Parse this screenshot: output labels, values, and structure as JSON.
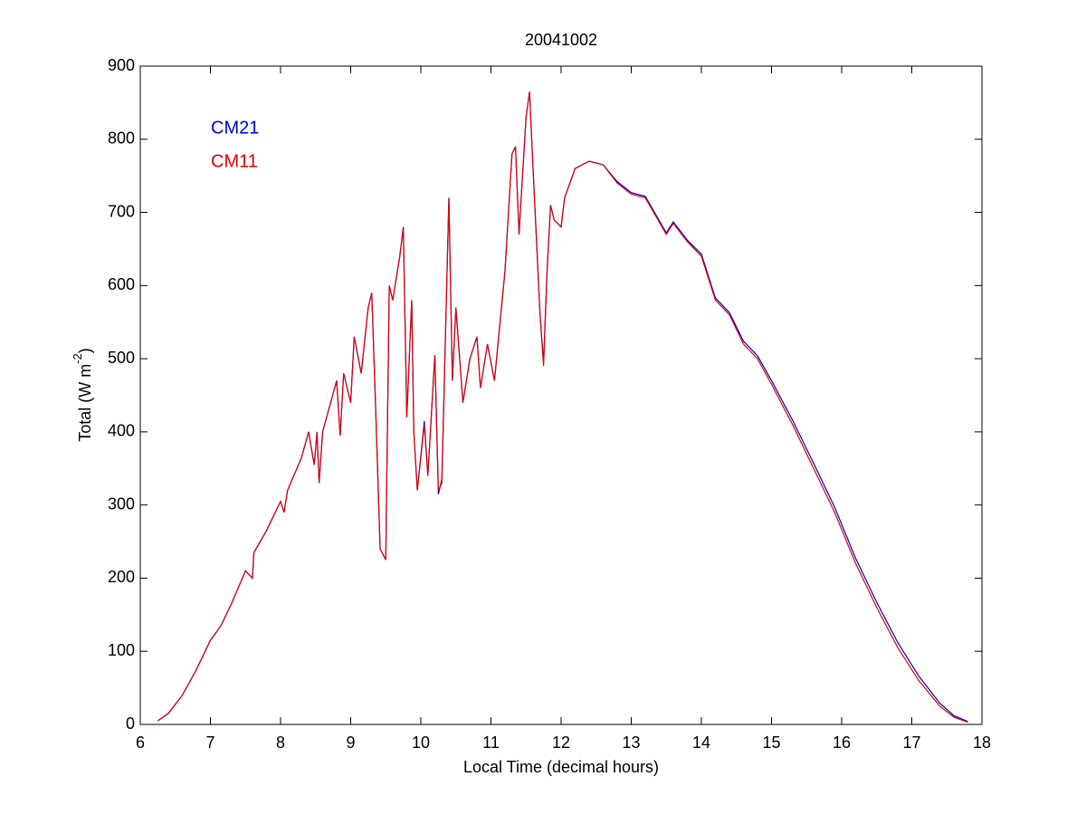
{
  "chart_data": {
    "type": "line",
    "title": "20041002",
    "xlabel": "Local Time (decimal hours)",
    "ylabel": {
      "text": "Total (W m",
      "sup": "-2",
      "end": ")"
    },
    "x": [
      6.25,
      6.4,
      6.6,
      6.8,
      7.0,
      7.15,
      7.3,
      7.5,
      7.6,
      7.62,
      7.8,
      8.0,
      8.05,
      8.1,
      8.3,
      8.4,
      8.48,
      8.52,
      8.55,
      8.6,
      8.8,
      8.85,
      8.9,
      9.0,
      9.05,
      9.15,
      9.25,
      9.3,
      9.35,
      9.42,
      9.5,
      9.55,
      9.6,
      9.7,
      9.75,
      9.8,
      9.87,
      9.9,
      9.95,
      10.05,
      10.1,
      10.2,
      10.25,
      10.3,
      10.4,
      10.45,
      10.5,
      10.6,
      10.7,
      10.8,
      10.85,
      10.95,
      11.05,
      11.2,
      11.3,
      11.35,
      11.4,
      11.5,
      11.55,
      11.6,
      11.7,
      11.75,
      11.8,
      11.85,
      11.9,
      12.0,
      12.05,
      12.2,
      12.4,
      12.6,
      12.8,
      13.0,
      13.2,
      13.5,
      13.6,
      13.8,
      14.0,
      14.2,
      14.4,
      14.6,
      14.8,
      15.0,
      15.3,
      15.6,
      15.9,
      16.2,
      16.5,
      16.8,
      17.1,
      17.4,
      17.6,
      17.8
    ],
    "series": [
      {
        "name": "CM21",
        "color": "#0000cc",
        "values": [
          5,
          15,
          40,
          75,
          115,
          135,
          165,
          210,
          200,
          235,
          265,
          305,
          290,
          320,
          365,
          400,
          355,
          400,
          330,
          400,
          470,
          395,
          480,
          440,
          530,
          480,
          570,
          590,
          450,
          240,
          225,
          600,
          580,
          640,
          680,
          420,
          580,
          400,
          320,
          415,
          340,
          505,
          315,
          335,
          720,
          470,
          570,
          440,
          500,
          530,
          460,
          520,
          470,
          620,
          780,
          790,
          670,
          830,
          865,
          760,
          560,
          495,
          620,
          710,
          690,
          680,
          720,
          760,
          770,
          765,
          742,
          727,
          722,
          672,
          687,
          662,
          643,
          583,
          563,
          524,
          504,
          470,
          416,
          357,
          297,
          227,
          167,
          112,
          66,
          29,
          12,
          4
        ]
      },
      {
        "name": "CM11",
        "color": "#dd0000",
        "values": [
          5,
          15,
          40,
          75,
          115,
          135,
          165,
          210,
          200,
          235,
          265,
          305,
          290,
          320,
          365,
          400,
          355,
          400,
          330,
          400,
          470,
          395,
          480,
          440,
          530,
          480,
          570,
          590,
          450,
          240,
          225,
          600,
          580,
          640,
          680,
          420,
          580,
          400,
          320,
          410,
          340,
          505,
          320,
          330,
          720,
          470,
          570,
          440,
          500,
          530,
          460,
          520,
          470,
          620,
          780,
          790,
          670,
          830,
          865,
          760,
          560,
          490,
          620,
          710,
          690,
          680,
          720,
          760,
          770,
          765,
          740,
          725,
          720,
          670,
          685,
          660,
          640,
          580,
          560,
          520,
          500,
          465,
          410,
          350,
          290,
          220,
          160,
          105,
          60,
          25,
          10,
          3
        ]
      }
    ],
    "xlim": [
      6,
      18
    ],
    "xticks": [
      6,
      7,
      8,
      9,
      10,
      11,
      12,
      13,
      14,
      15,
      16,
      17,
      18
    ],
    "ylim": [
      0,
      900
    ],
    "yticks": [
      0,
      100,
      200,
      300,
      400,
      500,
      600,
      700,
      800,
      900
    ],
    "legend": "upper-left"
  }
}
